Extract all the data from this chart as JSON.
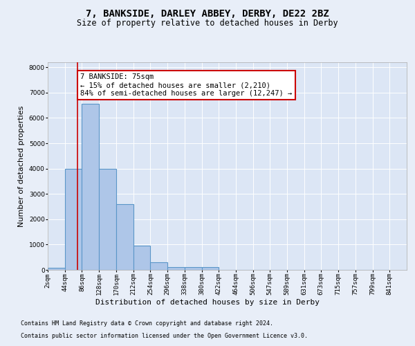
{
  "title": "7, BANKSIDE, DARLEY ABBEY, DERBY, DE22 2BZ",
  "subtitle": "Size of property relative to detached houses in Derby",
  "xlabel": "Distribution of detached houses by size in Derby",
  "ylabel": "Number of detached properties",
  "bar_edges": [
    2,
    44,
    86,
    128,
    170,
    212,
    254,
    296,
    338,
    380,
    422,
    464,
    506,
    547,
    589,
    631,
    673,
    715,
    757,
    799,
    841
  ],
  "bar_heights": [
    75,
    4000,
    6550,
    4000,
    2600,
    950,
    300,
    120,
    120,
    100,
    0,
    0,
    0,
    0,
    0,
    0,
    0,
    0,
    0,
    0
  ],
  "bar_color": "#aec6e8",
  "bar_edgecolor": "#5a96c8",
  "bar_linewidth": 0.8,
  "bg_color": "#e8eef8",
  "plot_bg_color": "#dce6f5",
  "grid_color": "#ffffff",
  "vline_x": 75,
  "vline_color": "#cc0000",
  "annotation_text": "7 BANKSIDE: 75sqm\n← 15% of detached houses are smaller (2,210)\n84% of semi-detached houses are larger (12,247) →",
  "annotation_box_color": "#ffffff",
  "annotation_border_color": "#cc0000",
  "ylim": [
    0,
    8200
  ],
  "yticks": [
    0,
    1000,
    2000,
    3000,
    4000,
    5000,
    6000,
    7000,
    8000
  ],
  "xtick_labels": [
    "2sqm",
    "44sqm",
    "86sqm",
    "128sqm",
    "170sqm",
    "212sqm",
    "254sqm",
    "296sqm",
    "338sqm",
    "380sqm",
    "422sqm",
    "464sqm",
    "506sqm",
    "547sqm",
    "589sqm",
    "631sqm",
    "673sqm",
    "715sqm",
    "757sqm",
    "799sqm",
    "841sqm"
  ],
  "footer_line1": "Contains HM Land Registry data © Crown copyright and database right 2024.",
  "footer_line2": "Contains public sector information licensed under the Open Government Licence v3.0.",
  "title_fontsize": 10,
  "subtitle_fontsize": 8.5,
  "axis_label_fontsize": 8,
  "tick_fontsize": 6.5,
  "footer_fontsize": 6,
  "annotation_fontsize": 7.5
}
